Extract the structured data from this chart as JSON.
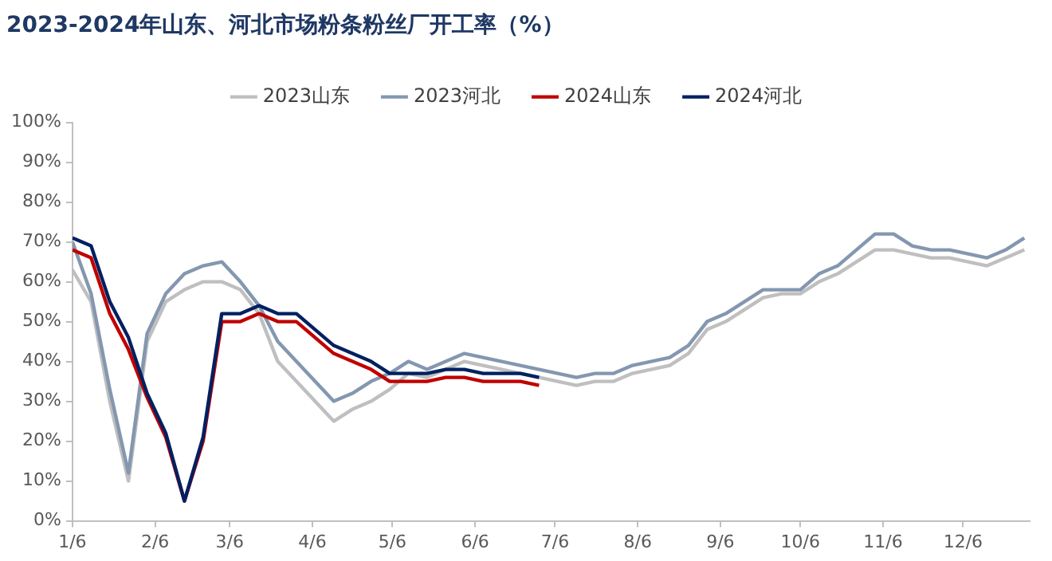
{
  "chart_data": {
    "type": "line",
    "title": "2023-2024年山东、河北市场粉条粉丝厂开工率（%）",
    "x": [
      "--01-06",
      "--01-13",
      "--01-20",
      "--01-27",
      "--02-03",
      "--02-10",
      "--02-17",
      "--02-24",
      "--03-03",
      "--03-10",
      "--03-17",
      "--03-24",
      "--03-31",
      "--04-07",
      "--04-14",
      "--04-21",
      "--04-28",
      "--05-05",
      "--05-12",
      "--05-19",
      "--05-26",
      "--06-02",
      "--06-09",
      "--06-16",
      "--06-23",
      "--06-30",
      "--07-07",
      "--07-14",
      "--07-21",
      "--07-28",
      "--08-04",
      "--08-11",
      "--08-18",
      "--08-25",
      "--09-01",
      "--09-08",
      "--09-15",
      "--09-22",
      "--09-29",
      "--10-06",
      "--10-13",
      "--10-20",
      "--10-27",
      "--11-03",
      "--11-10",
      "--11-17",
      "--11-24",
      "--12-01",
      "--12-08",
      "--12-15",
      "--12-22",
      "--12-29"
    ],
    "series": [
      {
        "name": "2023山东",
        "color": "#bfbfbf",
        "values": [
          63,
          55,
          30,
          10,
          45,
          55,
          58,
          60,
          60,
          58,
          52,
          40,
          35,
          30,
          25,
          28,
          30,
          33,
          37,
          36,
          38,
          40,
          39,
          38,
          37,
          36,
          35,
          34,
          35,
          35,
          37,
          38,
          39,
          42,
          48,
          50,
          53,
          56,
          57,
          57,
          60,
          62,
          65,
          68,
          68,
          67,
          66,
          66,
          65,
          64,
          66,
          68
        ]
      },
      {
        "name": "2023河北",
        "color": "#8497b0",
        "values": [
          70,
          57,
          33,
          12,
          47,
          57,
          62,
          64,
          65,
          60,
          54,
          45,
          40,
          35,
          30,
          32,
          35,
          37,
          40,
          38,
          40,
          42,
          41,
          40,
          39,
          38,
          37,
          36,
          37,
          37,
          39,
          40,
          41,
          44,
          50,
          52,
          55,
          58,
          58,
          58,
          62,
          64,
          68,
          72,
          72,
          69,
          68,
          68,
          67,
          66,
          68,
          71
        ]
      },
      {
        "name": "2024山东",
        "color": "#c00000",
        "values": [
          68,
          66,
          52,
          43,
          31,
          21,
          5,
          20,
          50,
          50,
          52,
          50,
          50,
          46,
          42,
          40,
          38,
          35,
          35,
          35,
          36,
          36,
          35,
          35,
          35,
          34,
          null,
          null,
          null,
          null,
          null,
          null,
          null,
          null,
          null,
          null,
          null,
          null,
          null,
          null,
          null,
          null,
          null,
          null,
          null,
          null,
          null,
          null,
          null,
          null,
          null,
          null
        ]
      },
      {
        "name": "2024河北",
        "color": "#002060",
        "values": [
          71,
          69,
          55,
          46,
          32,
          22,
          5,
          21,
          52,
          52,
          54,
          52,
          52,
          48,
          44,
          42,
          40,
          37,
          37,
          37,
          38,
          38,
          37,
          37,
          37,
          36,
          null,
          null,
          null,
          null,
          null,
          null,
          null,
          null,
          null,
          null,
          null,
          null,
          null,
          null,
          null,
          null,
          null,
          null,
          null,
          null,
          null,
          null,
          null,
          null,
          null,
          null
        ]
      }
    ],
    "xlim": [
      "--01-06",
      "--12-31"
    ],
    "xticks": [
      {
        "value": "--01-06",
        "label": "1/6"
      },
      {
        "value": "--02-06",
        "label": "2/6"
      },
      {
        "value": "--03-06",
        "label": "3/6"
      },
      {
        "value": "--04-06",
        "label": "4/6"
      },
      {
        "value": "--05-06",
        "label": "5/6"
      },
      {
        "value": "--06-06",
        "label": "6/6"
      },
      {
        "value": "--07-06",
        "label": "7/6"
      },
      {
        "value": "--08-06",
        "label": "8/6"
      },
      {
        "value": "--09-06",
        "label": "9/6"
      },
      {
        "value": "--10-06",
        "label": "10/6"
      },
      {
        "value": "--11-06",
        "label": "11/6"
      },
      {
        "value": "--12-06",
        "label": "12/6"
      }
    ],
    "ylim": [
      0,
      100
    ],
    "yticks": [
      {
        "value": 0,
        "label": "0%"
      },
      {
        "value": 10,
        "label": "10%"
      },
      {
        "value": 20,
        "label": "20%"
      },
      {
        "value": 30,
        "label": "30%"
      },
      {
        "value": 40,
        "label": "40%"
      },
      {
        "value": 50,
        "label": "50%"
      },
      {
        "value": 60,
        "label": "60%"
      },
      {
        "value": 70,
        "label": "70%"
      },
      {
        "value": 80,
        "label": "80%"
      },
      {
        "value": 90,
        "label": "90%"
      },
      {
        "value": 100,
        "label": "100%"
      }
    ],
    "grid": false,
    "legend": "top",
    "marker": "none",
    "line_style": "solid"
  }
}
